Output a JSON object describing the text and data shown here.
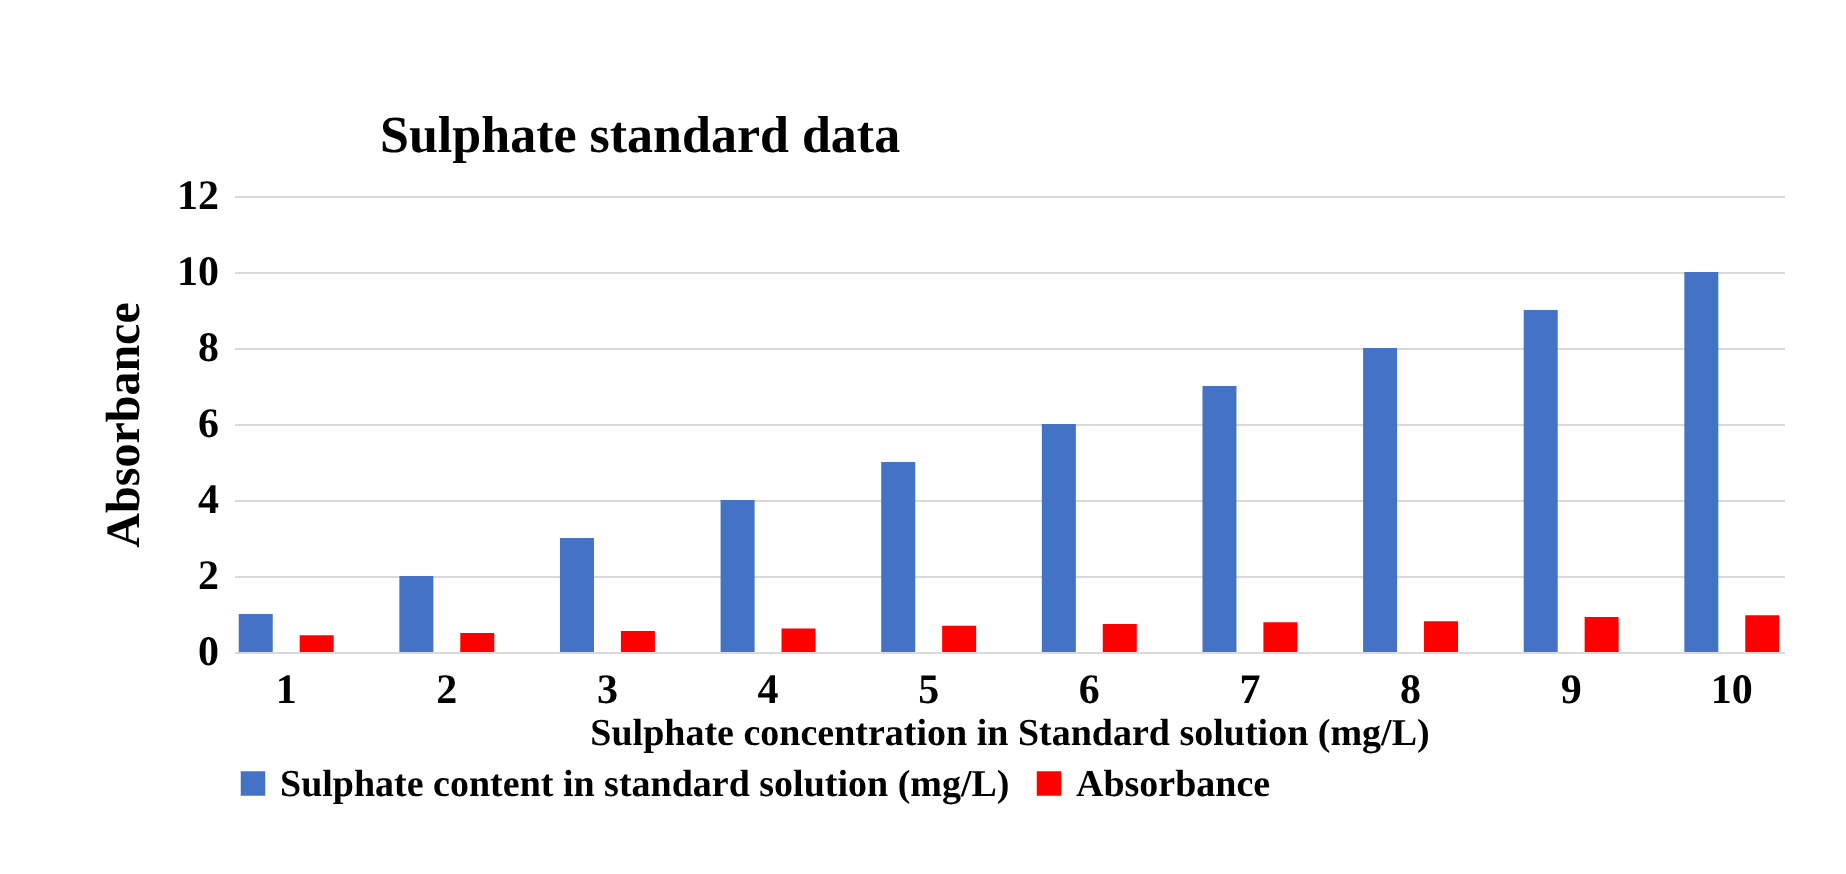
{
  "chart_data": {
    "type": "bar",
    "title": "Sulphate standard data",
    "xlabel": "Sulphate concentration in Standard solution (mg/L)",
    "ylabel": "Absorbance",
    "categories": [
      "1",
      "2",
      "3",
      "4",
      "5",
      "6",
      "7",
      "8",
      "9",
      "10"
    ],
    "series": [
      {
        "name": "Sulphate content in standard solution (mg/L)",
        "color": "#4472c4",
        "values": [
          1,
          2,
          3,
          4,
          5,
          6,
          7,
          8,
          9,
          10
        ]
      },
      {
        "name": "Absorbance",
        "color": "#ff0000",
        "values": [
          0.44,
          0.5,
          0.55,
          0.62,
          0.69,
          0.74,
          0.78,
          0.81,
          0.92,
          0.97
        ]
      }
    ],
    "ylim": [
      0,
      12
    ],
    "yticks": [
      0,
      2,
      4,
      6,
      8,
      10,
      12
    ],
    "grid": "y",
    "legend": "bottom"
  }
}
